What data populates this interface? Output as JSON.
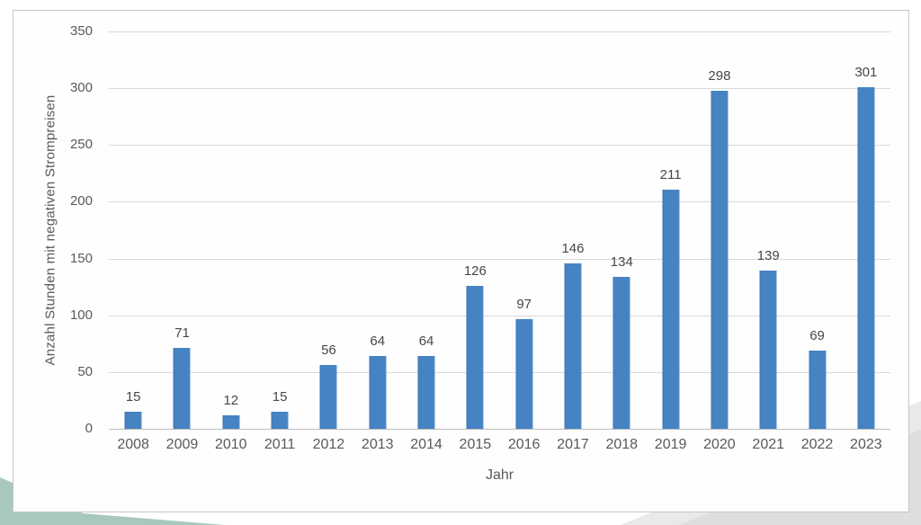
{
  "chart_data": {
    "type": "bar",
    "title": "",
    "categories": [
      "2008",
      "2009",
      "2010",
      "2011",
      "2012",
      "2013",
      "2014",
      "2015",
      "2016",
      "2017",
      "2018",
      "2019",
      "2020",
      "2021",
      "2022",
      "2023"
    ],
    "values": [
      15,
      71,
      12,
      15,
      56,
      64,
      64,
      126,
      97,
      146,
      134,
      211,
      298,
      139,
      69,
      301
    ],
    "data_labels": [
      15,
      71,
      12,
      15,
      56,
      64,
      64,
      126,
      97,
      146,
      134,
      211,
      298,
      139,
      69,
      301
    ],
    "xlabel": "Jahr",
    "ylabel": "Anzahl Stunden mit negativen Strompreisen",
    "ylim": [
      0,
      350
    ],
    "yticks": [
      "0",
      "50",
      "100",
      "150",
      "200",
      "250",
      "300",
      "350"
    ],
    "grid": true,
    "legend": null,
    "bar_color": "#4583c2"
  },
  "colors": {
    "bar": "#4583c2",
    "gridline": "#d9d9d9",
    "zero_line": "#bdbdbd",
    "axis_text": "#595959",
    "value_label_text": "#474747",
    "frame_border": "#c6c6c6",
    "teal_corner": "#a8c8be",
    "gray_corner": "#dededd"
  }
}
